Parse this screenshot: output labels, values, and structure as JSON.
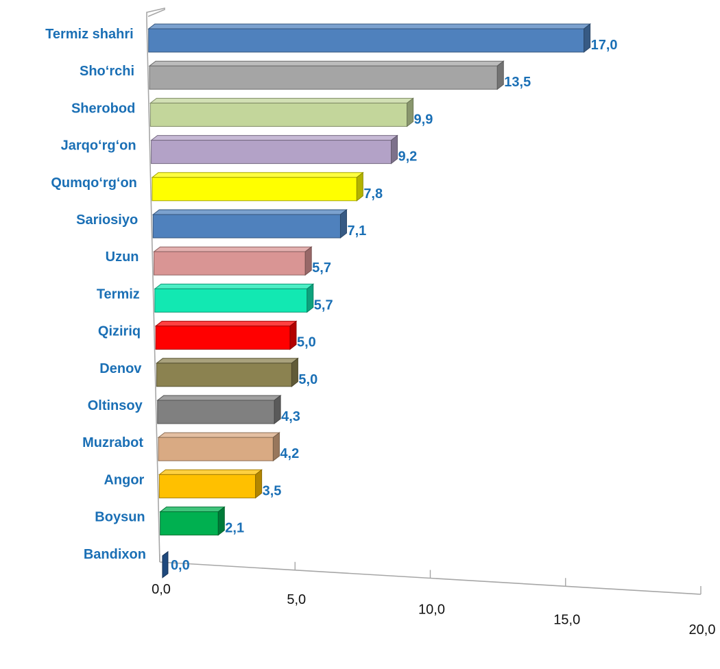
{
  "chart_data": {
    "type": "bar",
    "orientation": "horizontal",
    "style": "3d-perspective",
    "categories": [
      "Termiz shahri",
      "Sho‘rchi",
      "Sherobod",
      "Jarqo‘rg‘on",
      "Qumqo‘rg‘on",
      "Sariosiyo",
      "Uzun",
      "Termiz",
      "Qiziriq",
      "Denov",
      "Oltinsoy",
      "Muzrabot",
      "Angor",
      "Boysun",
      "Bandixon"
    ],
    "values": [
      17.0,
      13.5,
      9.9,
      9.2,
      7.8,
      7.1,
      5.7,
      5.7,
      5.0,
      5.0,
      4.3,
      4.2,
      3.5,
      2.1,
      0.0
    ],
    "value_labels": [
      "17,0",
      "13,5",
      "9,9",
      "9,2",
      "7,8",
      "7,1",
      "5,7",
      "5,7",
      "5,0",
      "5,0",
      "4,3",
      "4,2",
      "3,5",
      "2,1",
      "0,0"
    ],
    "colors": [
      "#4f81bd",
      "#a5a5a5",
      "#c3d69b",
      "#b3a2c7",
      "#ffff00",
      "#4f81bd",
      "#d99594",
      "#12e8b2",
      "#ff0000",
      "#8b8250",
      "#808080",
      "#d9aa83",
      "#ffc000",
      "#00b050",
      "#1f497d"
    ],
    "xlim": [
      0,
      20
    ],
    "xticks": [
      0,
      5,
      10,
      15,
      20
    ],
    "xtick_labels": [
      "0,0",
      "5,0",
      "10,0",
      "15,0",
      "20,0"
    ],
    "title": "",
    "xlabel": "",
    "ylabel": "",
    "grid": false,
    "legend": "none"
  }
}
